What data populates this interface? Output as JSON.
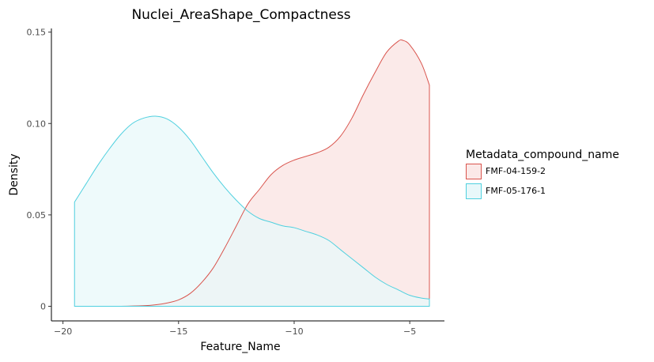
{
  "chart_data": {
    "type": "area",
    "title": "Nuclei_AreaShape_Compactness",
    "xlabel": "Feature_Name",
    "ylabel": "Density",
    "xlim": [
      -20.5,
      -3.5
    ],
    "ylim": [
      -0.008,
      0.152
    ],
    "x_ticks": [
      -20,
      -15,
      -10,
      -5
    ],
    "x_tick_labels": [
      "−20",
      "−15",
      "−10",
      "−5"
    ],
    "y_ticks": [
      0,
      0.05,
      0.1,
      0.15
    ],
    "y_tick_labels": [
      "0",
      "0.05",
      "0.10",
      "0.15"
    ],
    "grid": false,
    "legend": {
      "title": "Metadata_compound_name",
      "position": "right"
    },
    "series": [
      {
        "name": "FMF-04-159-2",
        "line_color": "#d9544d",
        "fill_color": "#fbe9e8",
        "x": [
          -19.5,
          -18.5,
          -17.5,
          -16.5,
          -16.0,
          -15.5,
          -15.0,
          -14.5,
          -14.0,
          -13.5,
          -13.0,
          -12.5,
          -12.0,
          -11.5,
          -11.0,
          -10.5,
          -10.0,
          -9.5,
          -9.0,
          -8.5,
          -8.0,
          -7.5,
          -7.0,
          -6.5,
          -6.0,
          -5.5,
          -5.3,
          -5.0,
          -4.5,
          -4.15
        ],
        "y": [
          0.0,
          0.0,
          0.0,
          0.0003,
          0.0008,
          0.0018,
          0.0035,
          0.007,
          0.013,
          0.021,
          0.032,
          0.044,
          0.056,
          0.064,
          0.072,
          0.077,
          0.08,
          0.082,
          0.084,
          0.087,
          0.093,
          0.103,
          0.116,
          0.128,
          0.139,
          0.145,
          0.1455,
          0.143,
          0.133,
          0.121
        ]
      },
      {
        "name": "FMF-05-176-1",
        "line_color": "#4fd0df",
        "fill_color": "#e8f8fa",
        "x": [
          -19.5,
          -19.0,
          -18.5,
          -18.0,
          -17.5,
          -17.0,
          -16.5,
          -16.0,
          -15.5,
          -15.0,
          -14.5,
          -14.0,
          -13.5,
          -13.0,
          -12.5,
          -12.0,
          -11.5,
          -11.0,
          -10.5,
          -10.0,
          -9.5,
          -9.0,
          -8.5,
          -8.0,
          -7.5,
          -7.0,
          -6.5,
          -6.0,
          -5.5,
          -5.0,
          -4.5,
          -4.15
        ],
        "y": [
          0.057,
          0.067,
          0.077,
          0.086,
          0.094,
          0.1,
          0.103,
          0.104,
          0.1025,
          0.098,
          0.091,
          0.082,
          0.073,
          0.065,
          0.058,
          0.052,
          0.048,
          0.046,
          0.044,
          0.043,
          0.041,
          0.039,
          0.036,
          0.031,
          0.026,
          0.021,
          0.016,
          0.012,
          0.009,
          0.006,
          0.0045,
          0.004
        ]
      }
    ]
  }
}
